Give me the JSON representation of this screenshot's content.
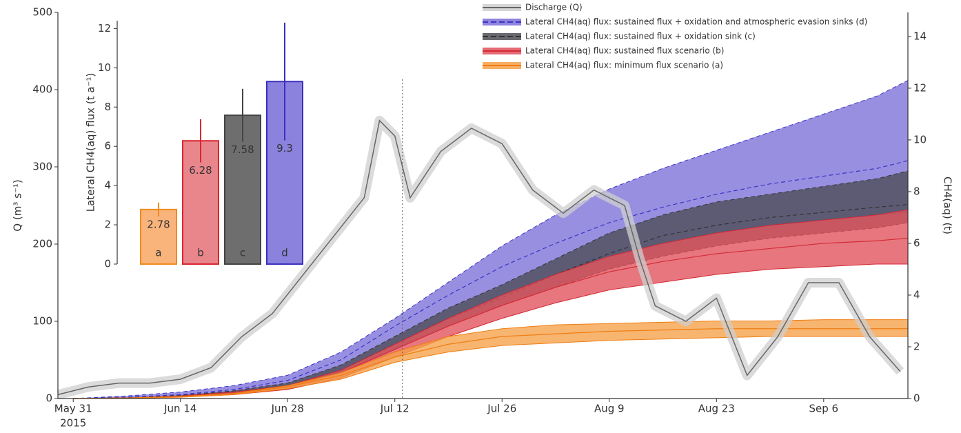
{
  "chart_data": [
    {
      "type": "band",
      "ylabel": "Q (m³ s⁻¹)",
      "y2label": "CH4(aq) (t)",
      "xlim": [
        "2015-05-29",
        "2015-09-17"
      ],
      "xticks": [
        {
          "value": "2015-05-31",
          "label": "May 31"
        },
        {
          "value": "2015-06-14",
          "label": "Jun 14"
        },
        {
          "value": "2015-06-28",
          "label": "Jun 28"
        },
        {
          "value": "2015-07-12",
          "label": "Jul 12"
        },
        {
          "value": "2015-07-26",
          "label": "Jul 26"
        },
        {
          "value": "2015-08-09",
          "label": "Aug 9"
        },
        {
          "value": "2015-08-23",
          "label": "Aug 23"
        },
        {
          "value": "2015-09-06",
          "label": "Sep 6"
        }
      ],
      "x_year_label": "2015",
      "ylim": [
        0,
        500
      ],
      "yticks": [
        0,
        100,
        200,
        300,
        400,
        500
      ],
      "y2lim": [
        0,
        14.93
      ],
      "y2ticks": [
        0,
        2,
        4,
        6,
        8,
        10,
        12,
        14
      ],
      "marker_date": "2015-07-13",
      "x": [
        "2015-05-31",
        "2015-06-07",
        "2015-06-14",
        "2015-06-21",
        "2015-06-28",
        "2015-07-05",
        "2015-07-12",
        "2015-07-19",
        "2015-07-26",
        "2015-08-02",
        "2015-08-09",
        "2015-08-16",
        "2015-08-23",
        "2015-08-30",
        "2015-09-06",
        "2015-09-13",
        "2015-09-17"
      ],
      "series": [
        {
          "name": "Discharge (Q)",
          "axis": "y",
          "color": "#666666",
          "fill": "#cfcfcf",
          "x": [
            "2015-05-29",
            "2015-06-02",
            "2015-06-06",
            "2015-06-10",
            "2015-06-14",
            "2015-06-18",
            "2015-06-22",
            "2015-06-26",
            "2015-06-30",
            "2015-07-04",
            "2015-07-08",
            "2015-07-10",
            "2015-07-12",
            "2015-07-14",
            "2015-07-18",
            "2015-07-22",
            "2015-07-26",
            "2015-07-30",
            "2015-08-03",
            "2015-08-07",
            "2015-08-11",
            "2015-08-13",
            "2015-08-15",
            "2015-08-19",
            "2015-08-23",
            "2015-08-27",
            "2015-08-31",
            "2015-09-04",
            "2015-09-08",
            "2015-09-12",
            "2015-09-16"
          ],
          "values": [
            5,
            15,
            20,
            20,
            25,
            40,
            80,
            110,
            160,
            210,
            260,
            360,
            340,
            260,
            320,
            350,
            330,
            270,
            240,
            270,
            250,
            180,
            120,
            100,
            130,
            30,
            80,
            150,
            150,
            80,
            35
          ]
        },
        {
          "name": "Lateral CH4(aq) flux: sustained flux + oxidation and atmospheric evasion sinks (d)",
          "axis": "y2",
          "color": "#3b33c4",
          "fill": "#7b70d8",
          "dashed": true,
          "upper": [
            0,
            0.1,
            0.25,
            0.5,
            0.9,
            1.8,
            3.1,
            4.5,
            5.9,
            7.1,
            8.1,
            8.9,
            9.6,
            10.3,
            11.0,
            11.7,
            12.3
          ],
          "values": [
            0,
            0.05,
            0.15,
            0.35,
            0.7,
            1.5,
            2.8,
            4.0,
            5.1,
            6.0,
            6.8,
            7.4,
            7.9,
            8.3,
            8.6,
            8.9,
            9.2
          ],
          "lower": [
            0,
            0.03,
            0.1,
            0.25,
            0.5,
            1.1,
            2.1,
            3.1,
            4.0,
            4.8,
            5.5,
            6.0,
            6.4,
            6.7,
            6.9,
            7.1,
            7.2
          ]
        },
        {
          "name": "Lateral CH4(aq) flux: sustained flux + oxidation sink (c)",
          "axis": "y2",
          "color": "#333333",
          "fill": "#4d4d55",
          "dashed": true,
          "upper": [
            0,
            0.03,
            0.12,
            0.3,
            0.6,
            1.3,
            2.4,
            3.5,
            4.4,
            5.4,
            6.4,
            7.1,
            7.6,
            7.9,
            8.2,
            8.5,
            8.8
          ],
          "values": [
            0,
            0.02,
            0.1,
            0.25,
            0.5,
            1.1,
            2.1,
            3.1,
            3.9,
            4.8,
            5.6,
            6.3,
            6.7,
            7.0,
            7.2,
            7.4,
            7.5
          ],
          "lower": [
            0,
            0.02,
            0.08,
            0.2,
            0.45,
            1.0,
            1.9,
            2.8,
            3.6,
            4.3,
            5.0,
            5.5,
            5.9,
            6.2,
            6.4,
            6.6,
            6.8
          ]
        },
        {
          "name": "Lateral CH4(aq) flux: sustained flux scenario (b)",
          "axis": "y2",
          "color": "#d42a35",
          "fill": "#e0505a",
          "dashed": false,
          "upper": [
            0,
            0.02,
            0.1,
            0.25,
            0.5,
            1.1,
            2.1,
            3.1,
            4.0,
            4.8,
            5.5,
            6.0,
            6.4,
            6.7,
            6.9,
            7.1,
            7.3
          ],
          "values": [
            0,
            0.02,
            0.08,
            0.2,
            0.45,
            1.0,
            1.9,
            2.8,
            3.6,
            4.3,
            4.9,
            5.3,
            5.6,
            5.8,
            6.0,
            6.1,
            6.2
          ],
          "lower": [
            0,
            0.01,
            0.06,
            0.15,
            0.35,
            0.8,
            1.6,
            2.4,
            3.1,
            3.7,
            4.2,
            4.5,
            4.8,
            5.0,
            5.1,
            5.2,
            5.2
          ]
        },
        {
          "name": "Lateral CH4(aq) flux: minimum flux scenario (a)",
          "axis": "y2",
          "color": "#ef7d12",
          "fill": "#f5a048",
          "dashed": false,
          "upper": [
            0,
            0.02,
            0.08,
            0.2,
            0.5,
            1.0,
            1.8,
            2.4,
            2.7,
            2.85,
            2.9,
            2.95,
            3.0,
            3.0,
            3.05,
            3.05,
            3.05
          ],
          "values": [
            0,
            0.02,
            0.07,
            0.18,
            0.45,
            0.9,
            1.6,
            2.1,
            2.4,
            2.5,
            2.6,
            2.65,
            2.7,
            2.7,
            2.7,
            2.7,
            2.7
          ],
          "lower": [
            0,
            0.01,
            0.05,
            0.15,
            0.38,
            0.75,
            1.4,
            1.8,
            2.05,
            2.15,
            2.25,
            2.3,
            2.35,
            2.4,
            2.4,
            2.4,
            2.4
          ]
        }
      ]
    },
    {
      "type": "bar",
      "ylabel": "Lateral CH4(aq) flux (t a⁻¹)",
      "categories": [
        "a",
        "b",
        "c",
        "d"
      ],
      "values": [
        2.78,
        6.28,
        7.58,
        9.3
      ],
      "errors": [
        0.35,
        1.1,
        1.35,
        3.0
      ],
      "colors": [
        "#f9b47c",
        "#e8868c",
        "#6e6e6e",
        "#8a82dc"
      ],
      "edge_colors": [
        "#f08a1c",
        "#d9262e",
        "#444444",
        "#3a2fbf"
      ],
      "ylim": [
        0,
        12.4
      ],
      "yticks": [
        0,
        2,
        4,
        6,
        8,
        10,
        12
      ]
    }
  ]
}
